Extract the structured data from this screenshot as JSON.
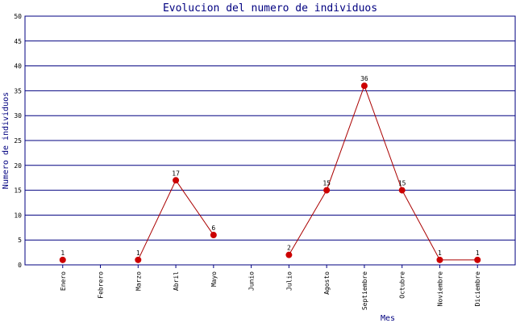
{
  "chart_data": {
    "type": "line",
    "title": "Evolucion del numero de individuos",
    "x_label": "Mes",
    "y_label": "Numero de individuos",
    "categories": [
      "Enero",
      "Febrero",
      "Marzo",
      "Abril",
      "Mayo",
      "Junio",
      "Julio",
      "Agosto",
      "Septiembre",
      "Octubre",
      "Noviembre",
      "Diciembre"
    ],
    "series": [
      {
        "name": "individuos",
        "color": "#aa0000",
        "marker_color": "#cc0000",
        "values": [
          1,
          null,
          1,
          17,
          6,
          null,
          2,
          15,
          36,
          15,
          1,
          1
        ]
      }
    ],
    "ylim": [
      0,
      50
    ],
    "yticks": [
      0,
      5,
      10,
      15,
      20,
      25,
      30,
      35,
      40,
      45,
      50
    ],
    "grid": true,
    "grid_color": "#000080"
  }
}
